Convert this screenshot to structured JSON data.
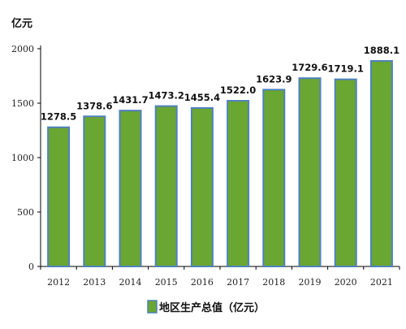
{
  "chart_data": {
    "type": "bar",
    "unit_label": "亿元",
    "categories": [
      "2012",
      "2013",
      "2014",
      "2015",
      "2016",
      "2017",
      "2018",
      "2019",
      "2020",
      "2021"
    ],
    "series": [
      {
        "name": "地区生产总值（亿元）",
        "values": [
          1278.5,
          1378.6,
          1431.7,
          1473.2,
          1455.4,
          1522.0,
          1623.9,
          1729.6,
          1719.1,
          1888.1
        ],
        "value_labels": [
          "1278.5",
          "1378.6",
          "1431.7",
          "1473.2",
          "1455.4",
          "1522.0",
          "1623.9",
          "1729.6",
          "1719.1",
          "1888.1"
        ]
      }
    ],
    "y_ticks": [
      "0",
      "500",
      "1000",
      "1500",
      "2000"
    ],
    "ylim": [
      0,
      2000
    ],
    "grid": false,
    "legend_position": "bottom-center",
    "colors": {
      "bar_fill": "#6aa632",
      "bar_edge": "#4f81bd",
      "axis": "#000000"
    }
  }
}
